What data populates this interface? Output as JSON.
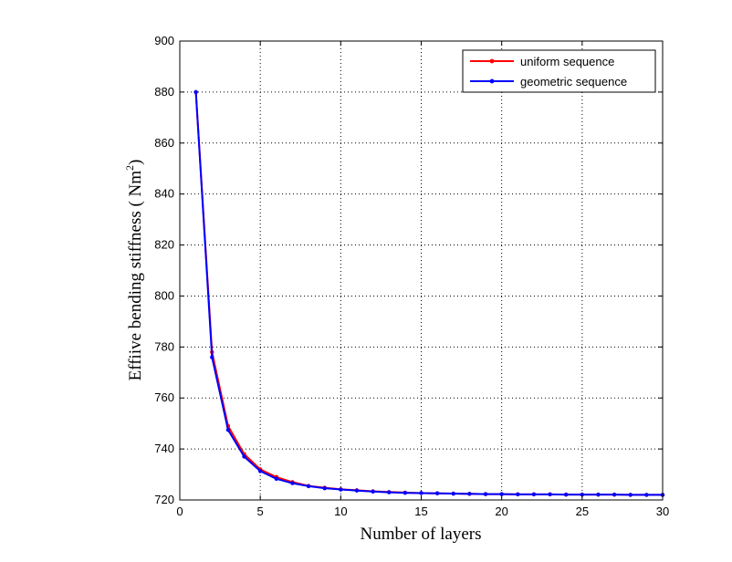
{
  "chart_data": {
    "type": "line",
    "xlabel": "Number of layers",
    "ylabel_main": "Effiive bending stiffness ( Nm",
    "ylabel_sup": "2",
    "ylabel_close": ")",
    "xlim": [
      0,
      30
    ],
    "ylim": [
      720,
      900
    ],
    "xticks": [
      0,
      5,
      10,
      15,
      20,
      25,
      30
    ],
    "yticks": [
      720,
      740,
      760,
      780,
      800,
      820,
      840,
      860,
      880,
      900
    ],
    "grid": true,
    "legend_position": "top-right",
    "x": [
      1,
      2,
      3,
      4,
      5,
      6,
      7,
      8,
      9,
      10,
      11,
      12,
      13,
      14,
      15,
      16,
      17,
      18,
      19,
      20,
      21,
      22,
      23,
      24,
      25,
      26,
      27,
      28,
      29,
      30
    ],
    "series": [
      {
        "name": "uniform sequence",
        "color": "#ff0000",
        "values": [
          880,
          778,
          749,
          738,
          732,
          729,
          727,
          725.5,
          724.8,
          724.2,
          723.8,
          723.4,
          723.1,
          722.9,
          722.7,
          722.6,
          722.5,
          722.4,
          722.3,
          722.3,
          722.2,
          722.2,
          722.2,
          722.1,
          722.1,
          722.1,
          722.1,
          722.0,
          722.0,
          722.0
        ]
      },
      {
        "name": "geometric sequence",
        "color": "#0000ff",
        "values": [
          880,
          776,
          747.5,
          737,
          731.3,
          728.3,
          726.6,
          725.4,
          724.6,
          724.1,
          723.7,
          723.3,
          723.0,
          722.8,
          722.7,
          722.6,
          722.5,
          722.4,
          722.3,
          722.3,
          722.2,
          722.2,
          722.2,
          722.1,
          722.1,
          722.1,
          722.1,
          722.0,
          722.0,
          722.0
        ]
      }
    ]
  }
}
